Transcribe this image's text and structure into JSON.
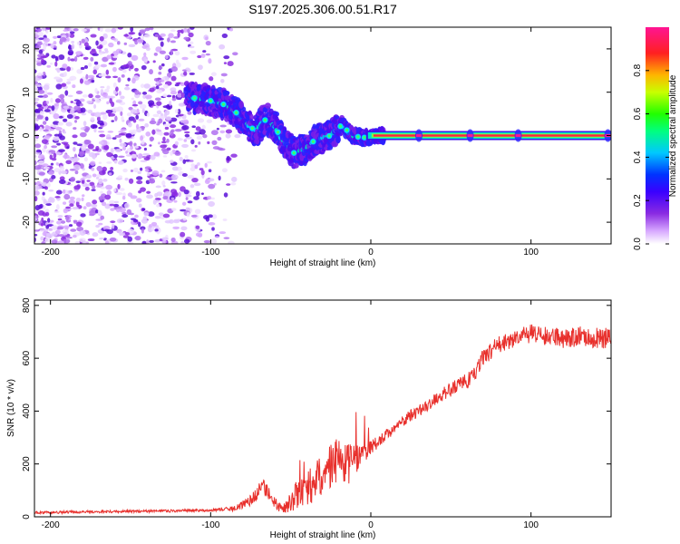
{
  "figure": {
    "title": "S197.2025.306.00.51.R17"
  },
  "chart_data": [
    {
      "type": "heatmap",
      "name": "spectrogram",
      "xlabel": "Height of straight line (km)",
      "ylabel": "Frequency (Hz)",
      "xlim": [
        -210,
        150
      ],
      "ylim": [
        -25,
        25
      ],
      "xticks": [
        -200,
        -100,
        0,
        100
      ],
      "xtick_labels": [
        "-200",
        "-100",
        "0",
        "100"
      ],
      "yticks": [
        -20,
        -10,
        0,
        10,
        20
      ],
      "ytick_labels": [
        "-20",
        "-10",
        "0",
        "10",
        "20"
      ],
      "colorbar": {
        "label": "Normalized spectral amplitude",
        "range": [
          0,
          1
        ],
        "ticks": [
          0.0,
          0.2,
          0.4,
          0.6,
          0.8
        ],
        "tick_labels": [
          "0.0",
          "0.2",
          "0.4",
          "0.6",
          "0.8"
        ],
        "colormap": "rainbow (white-violet-blue-cyan-green-yellow-red-magenta)"
      },
      "features": {
        "noise_region_km": [
          -210,
          -95
        ],
        "ridge_path": [
          {
            "x": -115,
            "freq": 9
          },
          {
            "x": -100,
            "freq": 8
          },
          {
            "x": -90,
            "freq": 7
          },
          {
            "x": -83,
            "freq": 5
          },
          {
            "x": -78,
            "freq": 3
          },
          {
            "x": -72,
            "freq": 1
          },
          {
            "x": -65,
            "freq": 4
          },
          {
            "x": -60,
            "freq": 2
          },
          {
            "x": -55,
            "freq": -1
          },
          {
            "x": -48,
            "freq": -4
          },
          {
            "x": -40,
            "freq": -3
          },
          {
            "x": -35,
            "freq": -1
          },
          {
            "x": -25,
            "freq": 0
          },
          {
            "x": -18,
            "freq": 2.5
          },
          {
            "x": -12,
            "freq": 0
          },
          {
            "x": -5,
            "freq": -0.5
          },
          {
            "x": 5,
            "freq": 0
          },
          {
            "x": 10,
            "freq": 0
          },
          {
            "x": 150,
            "freq": 0
          }
        ],
        "steady_line": {
          "x_start": 5,
          "x_end": 150,
          "freq": 0
        },
        "bright_spots_km": [
          30,
          62,
          92,
          148
        ]
      }
    },
    {
      "type": "line",
      "name": "snr",
      "xlabel": "Height of straight line (km)",
      "ylabel": "SNR (10 * v/v)",
      "xlim": [
        -210,
        150
      ],
      "ylim": [
        0,
        820
      ],
      "xticks": [
        -200,
        -100,
        0,
        100
      ],
      "xtick_labels": [
        "-200",
        "-100",
        "0",
        "100"
      ],
      "yticks": [
        0,
        200,
        400,
        600,
        800
      ],
      "ytick_labels": [
        "0",
        "200",
        "400",
        "600",
        "800"
      ],
      "line_color": "#e8302c",
      "series": [
        {
          "name": "SNR",
          "x": [
            -210,
            -180,
            -150,
            -120,
            -100,
            -85,
            -75,
            -67,
            -62,
            -58,
            -55,
            -50,
            -45,
            -40,
            -35,
            -30,
            -25,
            -20,
            -15,
            -10,
            -5,
            0,
            10,
            20,
            30,
            40,
            50,
            60,
            65,
            70,
            80,
            90,
            100,
            110,
            120,
            130,
            140,
            150
          ],
          "base": [
            15,
            18,
            20,
            22,
            25,
            30,
            60,
            110,
            70,
            40,
            25,
            55,
            80,
            100,
            120,
            150,
            190,
            210,
            180,
            210,
            240,
            260,
            310,
            360,
            400,
            440,
            480,
            510,
            540,
            600,
            650,
            670,
            690,
            680,
            670,
            680,
            675,
            670
          ],
          "spread": [
            10,
            10,
            10,
            10,
            10,
            20,
            40,
            70,
            50,
            40,
            40,
            80,
            110,
            130,
            150,
            160,
            170,
            180,
            170,
            120,
            80,
            60,
            45,
            45,
            45,
            50,
            55,
            60,
            60,
            65,
            65,
            70,
            70,
            70,
            75,
            80,
            80,
            80
          ]
        }
      ]
    }
  ]
}
